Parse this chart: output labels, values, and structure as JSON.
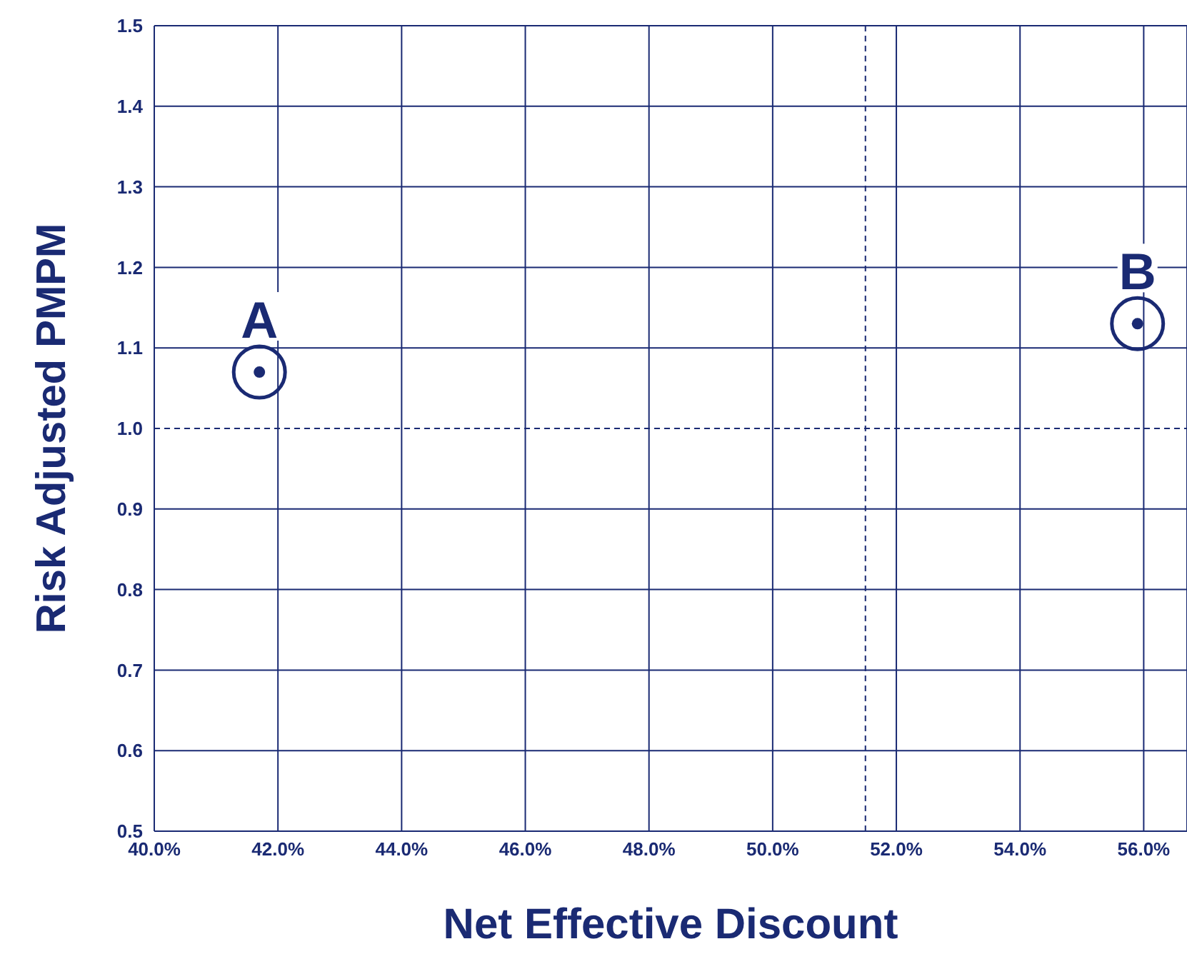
{
  "chart_data": {
    "type": "scatter",
    "xlabel": "Net Effective Discount",
    "ylabel": "Risk Adjusted PMPM",
    "x": [
      41.7,
      55.9
    ],
    "series": [
      {
        "color": "#1a2a73",
        "values": [
          1.07,
          1.13
        ]
      }
    ],
    "marker": "circle",
    "grid": true,
    "legend": false,
    "xlim": [
      40,
      56.7
    ],
    "xticks": [
      {
        "value": 40,
        "label": "40.0%"
      },
      {
        "value": 42,
        "label": "42.0%"
      },
      {
        "value": 44,
        "label": "44.0%"
      },
      {
        "value": 46,
        "label": "46.0%"
      },
      {
        "value": 48,
        "label": "48.0%"
      },
      {
        "value": 50,
        "label": "50.0%"
      },
      {
        "value": 52,
        "label": "52.0%"
      },
      {
        "value": 54,
        "label": "54.0%"
      },
      {
        "value": 56,
        "label": "56.0%"
      }
    ],
    "ylim": [
      0.5,
      1.5
    ],
    "yticks": [
      {
        "value": 0.5,
        "label": "0.5"
      },
      {
        "value": 0.6,
        "label": "0.6"
      },
      {
        "value": 0.7,
        "label": "0.7"
      },
      {
        "value": 0.8,
        "label": "0.8"
      },
      {
        "value": 0.9,
        "label": "0.9"
      },
      {
        "value": 1.0,
        "label": "1.0"
      },
      {
        "value": 1.1,
        "label": "1.1"
      },
      {
        "value": 1.2,
        "label": "1.2"
      },
      {
        "value": 1.3,
        "label": "1.3"
      },
      {
        "value": 1.4,
        "label": "1.4"
      },
      {
        "value": 1.5,
        "label": "1.5"
      }
    ],
    "ref_lines": [
      {
        "axis": "x",
        "value": 51.5,
        "line_style": "dashed",
        "color": "#1a2a73"
      },
      {
        "axis": "y",
        "value": 1.0,
        "line_style": "dashed",
        "color": "#1a2a73"
      }
    ],
    "annotations": [
      {
        "text": "A",
        "x": 41.7,
        "y": 1.07
      },
      {
        "text": "B",
        "x": 55.9,
        "y": 1.13
      }
    ]
  }
}
